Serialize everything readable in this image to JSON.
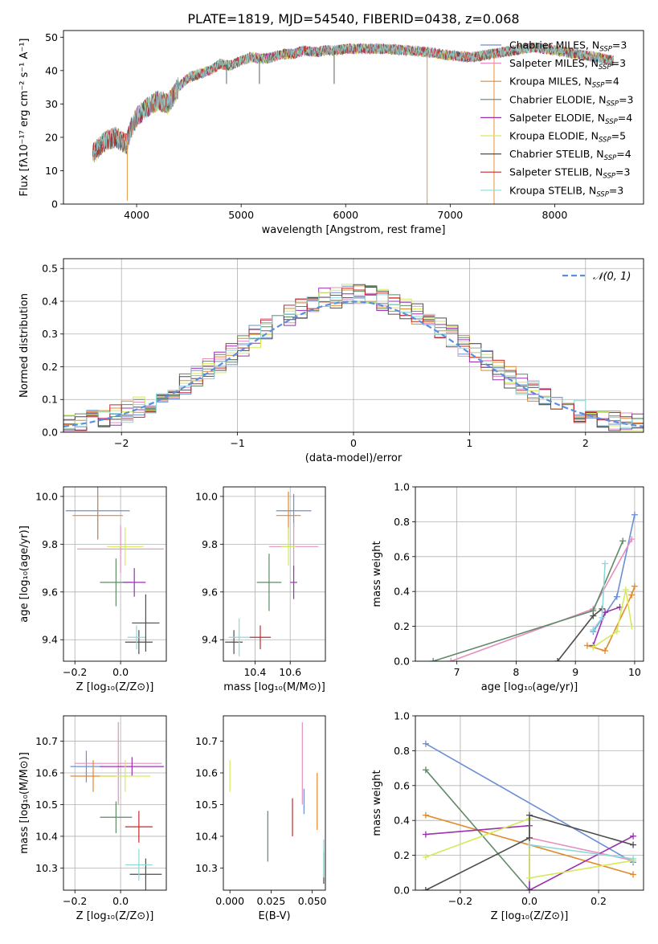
{
  "figure_title": "PLATE=1819, MJD=54540, FIBERID=0438, z=0.068",
  "chart_data": [
    {
      "id": "spectrum",
      "type": "line",
      "title": "PLATE=1819, MJD=54540, FIBERID=0438, z=0.068",
      "xlabel": "wavelength [Angstrom, rest frame]",
      "ylabel": "Flux [fλ10⁻¹⁷ erg cm⁻² s⁻¹ A⁻¹]",
      "xlim": [
        3300,
        8850
      ],
      "ylim": [
        0,
        52
      ],
      "xticks": [
        4000,
        5000,
        6000,
        7000,
        8000
      ],
      "yticks": [
        0,
        10,
        20,
        30,
        40,
        50
      ],
      "grid": false,
      "legend": "upper right",
      "continuum": {
        "x": [
          3580,
          3700,
          3800,
          3900,
          3950,
          4000,
          4100,
          4200,
          4300,
          4400,
          4500,
          4600,
          4700,
          4800,
          4900,
          5000,
          5100,
          5200,
          5300,
          5400,
          5500,
          5600,
          5700,
          5800,
          5900,
          6000,
          6200,
          6400,
          6600,
          6800,
          7000,
          7200,
          7400,
          7600,
          7800,
          8000,
          8200,
          8400,
          8550
        ],
        "y": [
          15,
          19,
          20,
          18,
          23,
          26,
          29,
          31,
          30,
          35,
          38,
          39,
          40,
          42,
          41.5,
          43,
          44,
          43.5,
          44,
          45,
          45,
          46,
          45.5,
          46,
          46,
          46.5,
          46.5,
          46.5,
          46,
          45.5,
          44.5,
          44,
          45,
          46,
          47,
          46,
          45,
          44,
          43
        ]
      },
      "spikes": [
        [
          3910,
          1
        ],
        [
          4860,
          36
        ],
        [
          5175,
          36
        ],
        [
          5890,
          36
        ],
        [
          6780,
          0
        ],
        [
          7420,
          0
        ]
      ],
      "series": [
        {
          "name": "Chabrier MILES, N_SSP=3",
          "color": "#6a8fd6"
        },
        {
          "name": "Salpeter MILES, N_SSP=3",
          "color": "#e68fc0"
        },
        {
          "name": "Kroupa MILES, N_SSP=4",
          "color": "#e08a2a"
        },
        {
          "name": "Chabrier ELODIE, N_SSP=3",
          "color": "#5e8a66"
        },
        {
          "name": "Salpeter ELODIE, N_SSP=4",
          "color": "#9b30b0"
        },
        {
          "name": "Kroupa ELODIE, N_SSP=5",
          "color": "#d4ea5a"
        },
        {
          "name": "Chabrier STELIB, N_SSP=4",
          "color": "#4d4d4d"
        },
        {
          "name": "Salpeter STELIB, N_SSP=3",
          "color": "#c42a2a"
        },
        {
          "name": "Kroupa STELIB, N_SSP=3",
          "color": "#8fd8d8"
        }
      ]
    },
    {
      "id": "residuals",
      "type": "line",
      "xlabel": "(data-model)/error",
      "ylabel": "Normed distribution",
      "xlim": [
        -2.5,
        2.5
      ],
      "ylim": [
        0,
        0.53
      ],
      "xticks": [
        -2,
        -1,
        0,
        1,
        2
      ],
      "yticks": [
        0.0,
        0.1,
        0.2,
        0.3,
        0.4,
        0.5
      ],
      "grid": true,
      "legend": "upper right",
      "gaussian_label": "𝒩(0, 1)",
      "gaussian_color": "#5b8ee0"
    },
    {
      "id": "age_vs_Z",
      "type": "scatter",
      "xlabel": "Z [log₁₀(Z/Z⊙)]",
      "ylabel": "age  [log₁₀(age/yr)]",
      "xlim": [
        -0.25,
        0.2
      ],
      "ylim": [
        9.31,
        10.04
      ],
      "xticks": [
        -0.2,
        0.0
      ],
      "yticks": [
        9.4,
        9.6,
        9.8,
        10.0
      ],
      "grid": true,
      "points": [
        {
          "x": -0.1,
          "xerr": 0.14,
          "y": 9.94,
          "yerr": 0.12,
          "color": "#6a8fd6"
        },
        {
          "x": 0.0,
          "xerr": 0.19,
          "y": 9.78,
          "yerr": 0.1,
          "color": "#e68fc0"
        },
        {
          "x": -0.1,
          "xerr": 0.11,
          "y": 9.92,
          "yerr": 0.1,
          "color": "#e08a2a"
        },
        {
          "x": -0.02,
          "xerr": 0.07,
          "y": 9.64,
          "yerr": 0.1,
          "color": "#5e8a66"
        },
        {
          "x": 0.06,
          "xerr": 0.05,
          "y": 9.64,
          "yerr": 0.06,
          "color": "#9b30b0"
        },
        {
          "x": 0.02,
          "xerr": 0.08,
          "y": 9.79,
          "yerr": 0.08,
          "color": "#d4ea5a"
        },
        {
          "x": 0.08,
          "xerr": 0.06,
          "y": 9.39,
          "yerr": 0.05,
          "color": "#4d4d4d"
        },
        {
          "x": 0.07,
          "xerr": 0.04,
          "y": 9.41,
          "yerr": 0.05,
          "color": "#8fd8d8"
        },
        {
          "x": 0.11,
          "xerr": 0.06,
          "y": 9.47,
          "yerr": 0.12,
          "color": "#4d4d4d"
        }
      ]
    },
    {
      "id": "age_vs_mass",
      "type": "scatter",
      "xlabel": "mass [log₁₀(M/M⊙)]",
      "ylabel": "",
      "xlim": [
        10.22,
        10.8
      ],
      "ylim": [
        9.31,
        10.04
      ],
      "xticks": [
        10.4,
        10.6
      ],
      "yticks": [
        9.4,
        9.6,
        9.8,
        10.0
      ],
      "grid": true,
      "points": [
        {
          "x": 10.62,
          "xerr": 0.1,
          "y": 9.94,
          "yerr": 0.07,
          "color": "#6a8fd6"
        },
        {
          "x": 10.62,
          "xerr": 0.14,
          "y": 9.79,
          "yerr": 0.1,
          "color": "#e68fc0"
        },
        {
          "x": 10.59,
          "xerr": 0.07,
          "y": 9.92,
          "yerr": 0.1,
          "color": "#e08a2a"
        },
        {
          "x": 10.48,
          "xerr": 0.07,
          "y": 9.64,
          "yerr": 0.12,
          "color": "#5e8a66"
        },
        {
          "x": 10.62,
          "xerr": 0.02,
          "y": 9.64,
          "yerr": 0.07,
          "color": "#9b30b0"
        },
        {
          "x": 10.59,
          "xerr": 0.04,
          "y": 9.79,
          "yerr": 0.08,
          "color": "#d4ea5a"
        },
        {
          "x": 10.28,
          "xerr": 0.05,
          "y": 9.39,
          "yerr": 0.05,
          "color": "#4d4d4d"
        },
        {
          "x": 10.31,
          "xerr": 0.06,
          "y": 9.41,
          "yerr": 0.08,
          "color": "#8fd8d8"
        },
        {
          "x": 10.43,
          "xerr": 0.06,
          "y": 9.41,
          "yerr": 0.05,
          "color": "#c42a2a"
        }
      ]
    },
    {
      "id": "mass_weight_vs_age",
      "type": "line",
      "xlabel": "age  [log₁₀(age/yr)]",
      "ylabel": "mass weight",
      "xlim": [
        6.3,
        10.15
      ],
      "ylim": [
        0,
        1.0
      ],
      "xticks": [
        7,
        8,
        9,
        10
      ],
      "yticks": [
        0.0,
        0.2,
        0.4,
        0.6,
        0.8,
        1.0
      ],
      "grid": true,
      "series": [
        {
          "color": "#6a8fd6",
          "x": [
            9.3,
            9.7,
            10.0
          ],
          "y": [
            0.17,
            0.37,
            0.84
          ]
        },
        {
          "color": "#e68fc0",
          "x": [
            6.9,
            9.3,
            9.95
          ],
          "y": [
            0.0,
            0.3,
            0.7
          ]
        },
        {
          "color": "#e08a2a",
          "x": [
            9.2,
            9.5,
            9.95,
            10.0
          ],
          "y": [
            0.09,
            0.06,
            0.38,
            0.43
          ]
        },
        {
          "color": "#5e8a66",
          "x": [
            6.6,
            9.3,
            9.8
          ],
          "y": [
            0.0,
            0.29,
            0.69
          ]
        },
        {
          "color": "#9b30b0",
          "x": [
            9.3,
            9.5,
            9.75
          ],
          "y": [
            0.09,
            0.28,
            0.31
          ]
        },
        {
          "color": "#d4ea5a",
          "x": [
            9.3,
            9.7,
            9.85,
            9.95
          ],
          "y": [
            0.08,
            0.17,
            0.41,
            0.2
          ]
        },
        {
          "color": "#4d4d4d",
          "x": [
            8.7,
            9.3,
            9.45
          ],
          "y": [
            0.0,
            0.26,
            0.3
          ]
        },
        {
          "color": "#8fd8d8",
          "x": [
            9.3,
            9.45,
            9.5
          ],
          "y": [
            0.18,
            0.25,
            0.56
          ]
        }
      ]
    },
    {
      "id": "mass_vs_Z",
      "type": "scatter",
      "xlabel": "Z [log₁₀(Z/Z⊙)]",
      "ylabel": "mass [log₁₀(M/M⊙)]",
      "xlim": [
        -0.25,
        0.2
      ],
      "ylim": [
        10.23,
        10.78
      ],
      "xticks": [
        -0.2,
        0.0
      ],
      "yticks": [
        10.3,
        10.4,
        10.5,
        10.6,
        10.7
      ],
      "grid": true,
      "points": [
        {
          "x": -0.15,
          "xerr": 0.07,
          "y": 10.62,
          "yerr": 0.05,
          "color": "#6a8fd6"
        },
        {
          "x": -0.01,
          "xerr": 0.19,
          "y": 10.63,
          "yerr": 0.13,
          "color": "#e68fc0"
        },
        {
          "x": -0.12,
          "xerr": 0.1,
          "y": 10.59,
          "yerr": 0.05,
          "color": "#e08a2a"
        },
        {
          "x": -0.02,
          "xerr": 0.07,
          "y": 10.46,
          "yerr": 0.05,
          "color": "#5e8a66"
        },
        {
          "x": 0.05,
          "xerr": 0.14,
          "y": 10.62,
          "yerr": 0.03,
          "color": "#9b30b0"
        },
        {
          "x": 0.02,
          "xerr": 0.11,
          "y": 10.59,
          "yerr": 0.05,
          "color": "#d4ea5a"
        },
        {
          "x": 0.11,
          "xerr": 0.07,
          "y": 10.28,
          "yerr": 0.05,
          "color": "#4d4d4d"
        },
        {
          "x": 0.08,
          "xerr": 0.06,
          "y": 10.31,
          "yerr": 0.05,
          "color": "#8fd8d8"
        },
        {
          "x": 0.08,
          "xerr": 0.06,
          "y": 10.43,
          "yerr": 0.05,
          "color": "#c42a2a"
        }
      ]
    },
    {
      "id": "mass_vs_ebv",
      "type": "scatter",
      "xlabel": "E(B-V)",
      "ylabel": "",
      "xlim": [
        -0.004,
        0.058
      ],
      "ylim": [
        10.23,
        10.78
      ],
      "xticks": [
        0.0,
        0.025,
        0.05
      ],
      "xticklabels": [
        "0.000",
        "0.025",
        "0.050"
      ],
      "yticks": [
        10.3,
        10.4,
        10.5,
        10.6,
        10.7
      ],
      "grid": false,
      "points": [
        {
          "x": 0.045,
          "y": 10.51,
          "yerr": 0.04,
          "color": "#6a8fd6"
        },
        {
          "x": 0.044,
          "y": 10.63,
          "yerr": 0.13,
          "color": "#e68fc0"
        },
        {
          "x": 0.053,
          "y": 10.51,
          "yerr": 0.09,
          "color": "#e08a2a"
        },
        {
          "x": 0.023,
          "y": 10.4,
          "yerr": 0.08,
          "color": "#5e8a66"
        },
        {
          "x": 0.0,
          "y": 10.59,
          "yerr": 0.05,
          "color": "#d4ea5a"
        },
        {
          "x": 0.057,
          "y": 10.3,
          "yerr": 0.05,
          "color": "#4d4d4d"
        },
        {
          "x": 0.057,
          "y": 10.33,
          "yerr": 0.06,
          "color": "#8fd8d8"
        },
        {
          "x": 0.038,
          "y": 10.46,
          "yerr": 0.06,
          "color": "#c42a2a"
        }
      ]
    },
    {
      "id": "mass_weight_vs_Z",
      "type": "line",
      "xlabel": "Z [log₁₀(Z/Z⊙)]",
      "ylabel": "mass weight",
      "xlim": [
        -0.33,
        0.33
      ],
      "ylim": [
        0,
        1.0
      ],
      "xticks": [
        -0.2,
        0.0,
        0.2
      ],
      "yticks": [
        0.0,
        0.2,
        0.4,
        0.6,
        0.8,
        1.0
      ],
      "grid": true,
      "series": [
        {
          "color": "#6a8fd6",
          "x": [
            -0.3,
            0.3
          ],
          "y": [
            0.84,
            0.16
          ]
        },
        {
          "color": "#e68fc0",
          "x": [
            0.0,
            0.3
          ],
          "y": [
            0.3,
            0.17
          ]
        },
        {
          "color": "#e08a2a",
          "x": [
            -0.3,
            0.3
          ],
          "y": [
            0.43,
            0.09
          ]
        },
        {
          "color": "#5e8a66",
          "x": [
            -0.3,
            0.0
          ],
          "y": [
            0.69,
            0.0
          ]
        },
        {
          "color": "#9b30b0",
          "x": [
            -0.3,
            0.0,
            0.0,
            0.3
          ],
          "y": [
            0.32,
            0.37,
            0.0,
            0.31
          ]
        },
        {
          "color": "#d4ea5a",
          "x": [
            -0.3,
            0.0,
            0.0,
            0.3
          ],
          "y": [
            0.19,
            0.41,
            0.07,
            0.17
          ]
        },
        {
          "color": "#4d4d4d",
          "x": [
            -0.3,
            0.0,
            0.0,
            0.3
          ],
          "y": [
            0.0,
            0.3,
            0.43,
            0.26
          ]
        },
        {
          "color": "#8fd8d8",
          "x": [
            0.0,
            0.3
          ],
          "y": [
            0.26,
            0.18
          ]
        }
      ]
    }
  ]
}
